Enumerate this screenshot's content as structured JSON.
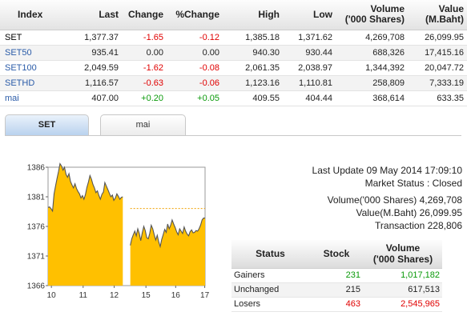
{
  "index_table": {
    "headers": {
      "index": "Index",
      "last": "Last",
      "change": "Change",
      "pct_change": "%Change",
      "high": "High",
      "low": "Low",
      "volume_1": "Volume",
      "volume_2": "('000 Shares)",
      "value_1": "Value",
      "value_2": "(M.Baht)"
    },
    "rows": [
      {
        "name": "SET",
        "last": "1,377.37",
        "change": "-1.65",
        "pct_change": "-0.12",
        "high": "1,385.18",
        "low": "1,371.62",
        "volume": "4,269,708",
        "value": "26,099.95",
        "trend": "neg",
        "name_color": "#000000"
      },
      {
        "name": "SET50",
        "last": "935.41",
        "change": "0.00",
        "pct_change": "0.00",
        "high": "940.30",
        "low": "930.44",
        "volume": "688,326",
        "value": "17,415.16",
        "trend": "zero",
        "name_color": "#2a5ba8"
      },
      {
        "name": "SET100",
        "last": "2,049.59",
        "change": "-1.62",
        "pct_change": "-0.08",
        "high": "2,061.35",
        "low": "2,038.97",
        "volume": "1,344,392",
        "value": "20,047.72",
        "trend": "neg",
        "name_color": "#2a5ba8"
      },
      {
        "name": "SETHD",
        "last": "1,116.57",
        "change": "-0.63",
        "pct_change": "-0.06",
        "high": "1,123.16",
        "low": "1,110.81",
        "volume": "258,809",
        "value": "7,333.19",
        "trend": "neg",
        "name_color": "#2a5ba8"
      },
      {
        "name": "mai",
        "last": "407.00",
        "change": "+0.20",
        "pct_change": "+0.05",
        "high": "409.55",
        "low": "404.44",
        "volume": "368,614",
        "value": "633.35",
        "trend": "pos",
        "name_color": "#2a5ba8"
      }
    ]
  },
  "tabs": [
    {
      "label": "SET",
      "active": true
    },
    {
      "label": "mai",
      "active": false
    }
  ],
  "chart_data": {
    "type": "area",
    "y_ticks": [
      "1386",
      "1381",
      "1376",
      "1371",
      "1366"
    ],
    "x_ticks": [
      "10",
      "11",
      "12",
      "15",
      "16",
      "17"
    ],
    "ylim": [
      1366,
      1386
    ],
    "reference_value": 1379.02,
    "fill_color": "#ffc000",
    "line_color": "#555555",
    "series": [
      {
        "x": [
          0,
          0.4,
          0.8,
          1.2,
          1.6,
          2.0,
          2.4,
          2.8,
          3.2,
          3.6,
          4.0,
          4.4,
          4.8,
          5.2,
          5.6,
          6.0,
          6.4,
          6.8,
          7.2,
          7.6,
          8.0,
          8.4,
          8.8,
          9.2,
          9.6,
          10.0,
          10.4,
          10.8,
          11.2,
          11.6,
          12.0,
          12.4,
          12.8,
          13.2,
          13.6,
          14.0,
          14.4,
          14.8,
          15.2,
          15.6,
          16.0,
          16.4,
          16.8,
          17.2,
          17.6,
          18.0,
          18.4,
          18.8,
          19.2,
          19.6,
          20.0
        ],
        "y": [
          1379.2,
          1379.3,
          1379.0,
          1378.6,
          1381.5,
          1382.8,
          1384.1,
          1385.3,
          1386.6,
          1386.2,
          1385.5,
          1386.0,
          1384.8,
          1384.3,
          1384.9,
          1383.6,
          1383.0,
          1382.5,
          1383.2,
          1382.4,
          1381.9,
          1381.5,
          1380.8,
          1381.2,
          1380.6,
          1381.4,
          1382.6,
          1383.5,
          1384.6,
          1384.0,
          1383.1,
          1382.5,
          1381.7,
          1382.0,
          1381.2,
          1380.6,
          1381.4,
          1381.8,
          1383.4,
          1382.8,
          1382.2,
          1381.6,
          1381.0,
          1381.3,
          1380.4,
          1380.8,
          1381.5,
          1381.1,
          1380.6,
          1380.9,
          1381.0
        ]
      },
      {
        "x": [
          22.0,
          22.4,
          22.8,
          23.2,
          23.6,
          24.0,
          24.4,
          24.8,
          25.2,
          25.6,
          26.0,
          26.4,
          26.8,
          27.2,
          27.6,
          28.0,
          28.4,
          28.8,
          29.2,
          29.6,
          30.0,
          30.4,
          30.8,
          31.2,
          31.6,
          32.0,
          32.4,
          32.8,
          33.2,
          33.6,
          34.0,
          34.4,
          34.8,
          35.2,
          35.6,
          36.0,
          36.4,
          36.8,
          37.2,
          37.6,
          38.0,
          38.4,
          38.8,
          39.2,
          39.6,
          40.0,
          40.4,
          40.8,
          41.2,
          41.6,
          42.0
        ],
        "y": [
          1372.8,
          1373.9,
          1374.6,
          1375.2,
          1374.4,
          1375.6,
          1374.8,
          1373.6,
          1374.9,
          1376.0,
          1375.3,
          1374.1,
          1373.9,
          1374.8,
          1376.2,
          1375.6,
          1374.6,
          1373.7,
          1374.5,
          1373.4,
          1372.6,
          1373.8,
          1374.6,
          1375.5,
          1375.0,
          1376.4,
          1375.6,
          1376.2,
          1377.1,
          1376.4,
          1375.8,
          1375.1,
          1374.6,
          1375.6,
          1375.2,
          1374.8,
          1375.9,
          1375.2,
          1374.7,
          1374.4,
          1375.1,
          1375.4,
          1374.9,
          1375.0,
          1375.3,
          1375.2,
          1375.6,
          1376.2,
          1377.1,
          1377.4,
          1377.4
        ]
      }
    ]
  },
  "market_info": {
    "last_update": "Last Update 09 May 2014 17:09:10",
    "market_status": "Market Status : Closed",
    "volume": "Volume('000 Shares) 4,269,708",
    "value": "Value(M.Baht) 26,099.95",
    "transaction": "Transaction 228,806"
  },
  "status_table": {
    "headers": {
      "status": "Status",
      "stock": "Stock",
      "volume_1": "Volume",
      "volume_2": "('000 Shares)"
    },
    "rows": [
      {
        "status": "Gainers",
        "stock": "231",
        "volume": "1,017,182",
        "color": "#0a9a0a"
      },
      {
        "status": "Unchanged",
        "stock": "215",
        "volume": "617,513",
        "color": "#222222"
      },
      {
        "status": "Losers",
        "stock": "463",
        "volume": "2,545,965",
        "color": "#e00000"
      }
    ]
  }
}
